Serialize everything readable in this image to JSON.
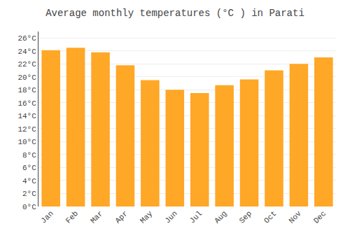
{
  "chart_data": {
    "type": "bar",
    "title": "Average monthly temperatures (°C ) in Parati",
    "categories": [
      "Jan",
      "Feb",
      "Mar",
      "Apr",
      "May",
      "Jun",
      "Jul",
      "Aug",
      "Sep",
      "Oct",
      "Nov",
      "Dec"
    ],
    "values": [
      24.1,
      24.5,
      23.8,
      21.8,
      19.5,
      18.0,
      17.5,
      18.7,
      19.6,
      21.0,
      22.0,
      23.0
    ],
    "color": "#FFA726",
    "ylim": [
      0,
      27
    ],
    "yticks": [
      {
        "value": 0,
        "label": "0°C"
      },
      {
        "value": 2,
        "label": "2°C"
      },
      {
        "value": 4,
        "label": "4°C"
      },
      {
        "value": 6,
        "label": "6°C"
      },
      {
        "value": 8,
        "label": "8°C"
      },
      {
        "value": 10,
        "label": "10°C"
      },
      {
        "value": 12,
        "label": "12°C"
      },
      {
        "value": 14,
        "label": "14°C"
      },
      {
        "value": 16,
        "label": "16°C"
      },
      {
        "value": 18,
        "label": "18°C"
      },
      {
        "value": 20,
        "label": "20°C"
      },
      {
        "value": 22,
        "label": "22°C"
      },
      {
        "value": 24,
        "label": "24°C"
      },
      {
        "value": 26,
        "label": "26°C"
      }
    ],
    "grid": true
  }
}
